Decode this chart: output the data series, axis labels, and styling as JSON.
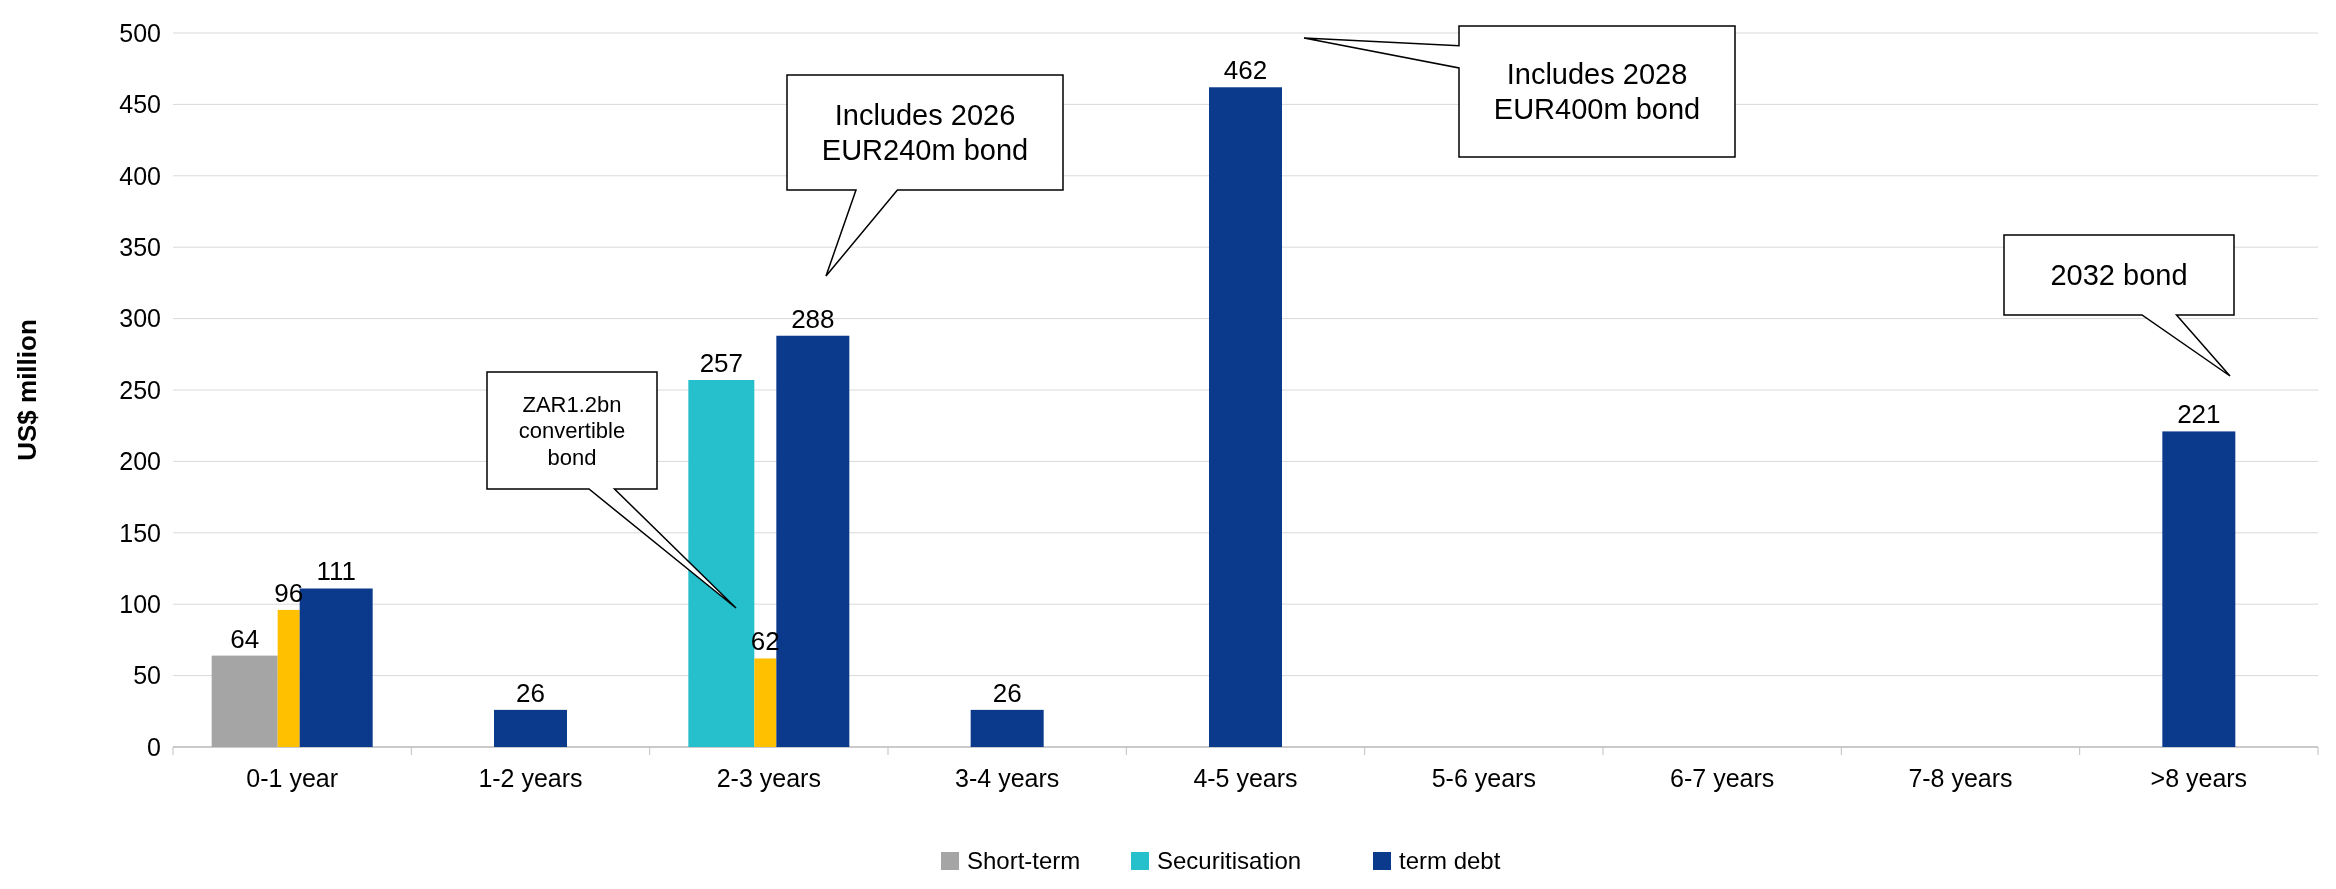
{
  "chart_data": {
    "type": "bar",
    "ylabel": "US$ million",
    "categories": [
      "0-1 year",
      "1-2 years",
      "2-3 years",
      "3-4 years",
      "4-5 years",
      "5-6 years",
      "6-7 years",
      "7-8 years",
      ">8 years"
    ],
    "series": [
      {
        "name": "Short-term",
        "color": "#a5a5a5",
        "values": [
          64,
          null,
          null,
          null,
          null,
          null,
          null,
          null,
          null
        ]
      },
      {
        "name": "Securitisation",
        "color": "#26bfcc",
        "values": [
          null,
          null,
          257,
          null,
          null,
          null,
          null,
          null,
          null
        ]
      },
      {
        "color": "#ffc000",
        "values": [
          96,
          null,
          62,
          null,
          null,
          null,
          null,
          null,
          null
        ]
      },
      {
        "name": "term debt",
        "color": "#0b3a8c",
        "values": [
          111,
          26,
          288,
          26,
          462,
          null,
          null,
          null,
          221
        ]
      }
    ],
    "ylim": [
      0,
      500
    ],
    "yticks": [
      0,
      50,
      100,
      150,
      200,
      250,
      300,
      350,
      400,
      450,
      500
    ],
    "grid": "y",
    "legend": "bottom",
    "data_labels": true,
    "annotations": [
      "ZAR1.2bn\nconvertible\nbond",
      "Includes 2026\nEUR240m bond",
      "Includes 2028\nEUR400m bond",
      "2032 bond"
    ]
  }
}
